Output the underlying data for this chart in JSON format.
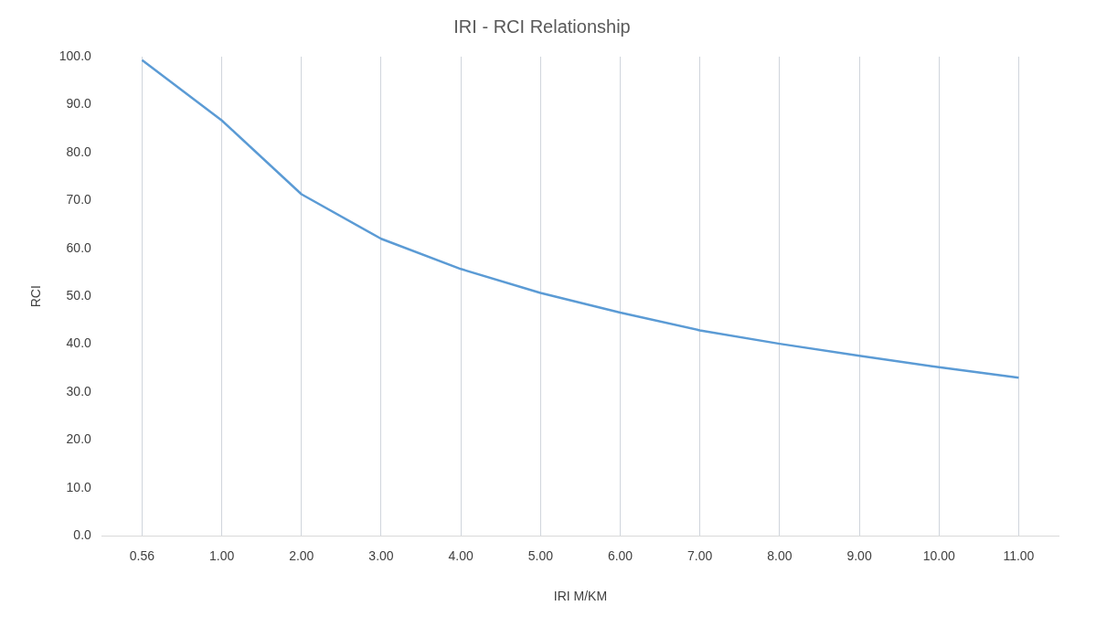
{
  "chart_data": {
    "type": "line",
    "title": "IRI - RCI Relationship",
    "xlabel": "IRI M/KM",
    "ylabel": "RCI",
    "categories": [
      "0.56",
      "1.00",
      "2.00",
      "3.00",
      "4.00",
      "5.00",
      "6.00",
      "7.00",
      "8.00",
      "9.00",
      "10.00",
      "11.00"
    ],
    "series": [
      {
        "color": "#5b9bd5",
        "values": [
          99.3,
          86.7,
          71.3,
          62.0,
          55.7,
          50.7,
          46.6,
          42.9,
          40.1,
          37.6,
          35.2,
          33.0
        ]
      }
    ],
    "ylim": [
      0,
      100
    ],
    "yticks": [
      {
        "value": 0,
        "label": "0.0"
      },
      {
        "value": 10,
        "label": "10.0"
      },
      {
        "value": 20,
        "label": "20.0"
      },
      {
        "value": 30,
        "label": "30.0"
      },
      {
        "value": 40,
        "label": "40.0"
      },
      {
        "value": 50,
        "label": "50.0"
      },
      {
        "value": 60,
        "label": "60.0"
      },
      {
        "value": 70,
        "label": "70.0"
      },
      {
        "value": 80,
        "label": "80.0"
      },
      {
        "value": 90,
        "label": "90.0"
      },
      {
        "value": 100,
        "label": "100.0"
      }
    ],
    "grid": "x",
    "legend": false,
    "marker": "none",
    "line_style": "solid"
  }
}
